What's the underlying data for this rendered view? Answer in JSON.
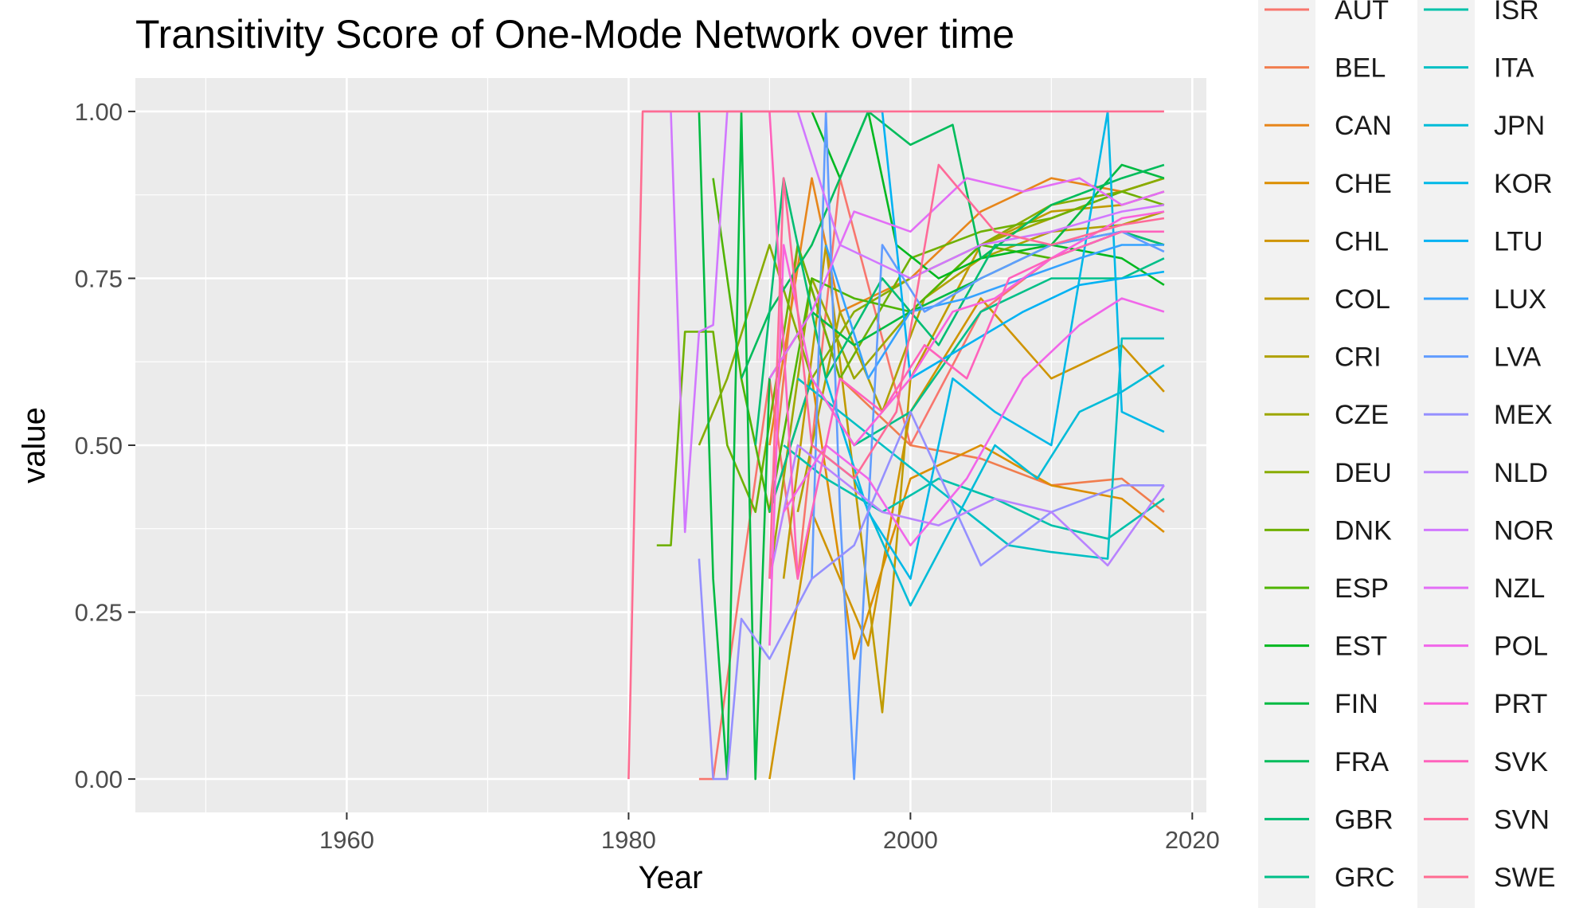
{
  "chart_data": {
    "type": "line",
    "title": "Transitivity Score of One-Mode Network over time",
    "xlabel": "Year",
    "ylabel": "value",
    "xlim": [
      1945,
      2021
    ],
    "ylim": [
      -0.05,
      1.05
    ],
    "x_ticks": [
      1960,
      1980,
      2000,
      2020
    ],
    "x_tick_labels": [
      "1960",
      "1980",
      "2000",
      "2020"
    ],
    "y_ticks": [
      0,
      0.25,
      0.5,
      0.75,
      1.0
    ],
    "y_tick_labels": [
      "0.00",
      "0.25",
      "0.50",
      "0.75",
      "1.00"
    ],
    "grid": true,
    "legend_position": "right",
    "series": [
      {
        "name": "AUT",
        "color": "#F8766D",
        "x": [
          1985,
          1986,
          1990,
          1992,
          1995,
          2000,
          2005,
          2010,
          2015,
          2018
        ],
        "y": [
          0,
          0,
          0.6,
          0.3,
          0.9,
          0.5,
          0.7,
          0.78,
          0.82,
          0.8
        ]
      },
      {
        "name": "BEL",
        "color": "#F17D4E",
        "x": [
          1990,
          1992,
          1995,
          2000,
          2005,
          2010,
          2015,
          2018
        ],
        "y": [
          0.4,
          0.8,
          0.6,
          0.5,
          0.48,
          0.44,
          0.45,
          0.4
        ]
      },
      {
        "name": "CAN",
        "color": "#E7861B",
        "x": [
          1990,
          1993,
          1995,
          2000,
          2005,
          2010,
          2015,
          2018
        ],
        "y": [
          0.5,
          0.9,
          0.7,
          0.75,
          0.85,
          0.9,
          0.88,
          0.9
        ]
      },
      {
        "name": "CHE",
        "color": "#DC8E00",
        "x": [
          1990,
          1993,
          1996,
          2000,
          2005,
          2010,
          2015,
          2018
        ],
        "y": [
          0.4,
          0.6,
          0.18,
          0.45,
          0.5,
          0.44,
          0.42,
          0.37
        ]
      },
      {
        "name": "CHL",
        "color": "#CF9400",
        "x": [
          1990,
          1993,
          1997,
          2000,
          2005,
          2010,
          2015,
          2018
        ],
        "y": [
          0,
          0.4,
          0.2,
          0.55,
          0.72,
          0.6,
          0.65,
          0.58
        ]
      },
      {
        "name": "COL",
        "color": "#C09B00",
        "x": [
          1991,
          1994,
          1998,
          2000,
          2005,
          2010,
          2015,
          2018
        ],
        "y": [
          0.3,
          0.8,
          0.1,
          0.6,
          0.8,
          0.85,
          0.86,
          0.88
        ]
      },
      {
        "name": "CRI",
        "color": "#B0A100",
        "x": [
          1992,
          1995,
          1998,
          2001,
          2005,
          2010,
          2015,
          2018
        ],
        "y": [
          0.4,
          0.7,
          0.55,
          0.72,
          0.78,
          0.82,
          0.83,
          0.85
        ]
      },
      {
        "name": "CZE",
        "color": "#9DA700",
        "x": [
          1990,
          1993,
          1996,
          2000,
          2005,
          2010,
          2015,
          2018
        ],
        "y": [
          0.3,
          0.75,
          0.6,
          0.7,
          0.8,
          0.84,
          0.88,
          0.9
        ]
      },
      {
        "name": "DEU",
        "color": "#88AC00",
        "x": [
          1985,
          1987,
          1990,
          1993,
          1996,
          2000,
          2005,
          2010,
          2015,
          2018
        ],
        "y": [
          0.5,
          0.6,
          0.8,
          0.6,
          0.7,
          0.75,
          0.8,
          0.86,
          0.88,
          0.9
        ]
      },
      {
        "name": "DNK",
        "color": "#6FB000",
        "x": [
          1982,
          1983,
          1984,
          1986,
          1987,
          1989,
          1992,
          1995,
          2000,
          2005,
          2010,
          2015,
          2018
        ],
        "y": [
          0.35,
          0.35,
          0.67,
          0.67,
          0.5,
          0.4,
          0.8,
          0.6,
          0.78,
          0.82,
          0.84,
          0.88,
          0.86
        ]
      },
      {
        "name": "ESP",
        "color": "#4FB400",
        "x": [
          1986,
          1988,
          1990,
          1993,
          1996,
          2000,
          2005,
          2010,
          2015,
          2018
        ],
        "y": [
          0.9,
          0.6,
          0.4,
          0.75,
          0.72,
          0.7,
          0.8,
          0.78,
          0.82,
          0.8
        ]
      },
      {
        "name": "EST",
        "color": "#00B81F",
        "x": [
          1993,
          1995,
          1997,
          1999,
          2002,
          2005,
          2010,
          2015,
          2018
        ],
        "y": [
          1.0,
          0.9,
          1.0,
          0.8,
          0.75,
          0.78,
          0.8,
          0.78,
          0.74
        ]
      },
      {
        "name": "FIN",
        "color": "#00BA42",
        "x": [
          1985,
          1986,
          1987,
          1988,
          1989,
          1990,
          1993,
          1996,
          2000,
          2005,
          2010,
          2015,
          2018
        ],
        "y": [
          1.0,
          0.3,
          0,
          1.0,
          0,
          0.6,
          0.7,
          0.65,
          0.7,
          0.75,
          0.8,
          0.92,
          0.9
        ]
      },
      {
        "name": "FRA",
        "color": "#00BC5B",
        "x": [
          1988,
          1990,
          1993,
          1997,
          2000,
          2003,
          2005,
          2010,
          2015,
          2018
        ],
        "y": [
          0.6,
          0.7,
          0.8,
          1.0,
          0.95,
          0.98,
          0.78,
          0.86,
          0.9,
          0.92
        ]
      },
      {
        "name": "GBR",
        "color": "#00BD73",
        "x": [
          1989,
          1991,
          1994,
          1998,
          2002,
          2006,
          2010,
          2015,
          2018
        ],
        "y": [
          0.5,
          0.9,
          0.6,
          0.75,
          0.65,
          0.8,
          0.8,
          0.82,
          0.8
        ]
      },
      {
        "name": "GRC",
        "color": "#00BF88",
        "x": [
          1990,
          1993,
          1996,
          2000,
          2005,
          2010,
          2015,
          2018
        ],
        "y": [
          0.4,
          0.6,
          0.5,
          0.55,
          0.7,
          0.75,
          0.75,
          0.78
        ]
      },
      {
        "name": "ISR",
        "color": "#00C1AA",
        "x": [
          1991,
          1994,
          1998,
          2002,
          2006,
          2010,
          2014,
          2018
        ],
        "y": [
          0.5,
          0.45,
          0.4,
          0.45,
          0.42,
          0.38,
          0.36,
          0.42
        ]
      },
      {
        "name": "ITA",
        "color": "#00BFC4",
        "x": [
          1992,
          1995,
          1998,
          2001,
          2004,
          2007,
          2010,
          2014,
          2015,
          2018
        ],
        "y": [
          0.6,
          0.55,
          0.5,
          0.45,
          0.4,
          0.35,
          0.34,
          0.33,
          0.66,
          0.66
        ]
      },
      {
        "name": "JPN",
        "color": "#00BCD8",
        "x": [
          1993,
          1996,
          2000,
          2003,
          2006,
          2009,
          2012,
          2015,
          2018
        ],
        "y": [
          0.5,
          0.45,
          0.26,
          0.38,
          0.5,
          0.45,
          0.55,
          0.58,
          0.62
        ]
      },
      {
        "name": "KOR",
        "color": "#00B8E7",
        "x": [
          1994,
          1997,
          2000,
          2003,
          2006,
          2010,
          2014,
          2015,
          2018
        ],
        "y": [
          0.6,
          0.4,
          0.3,
          0.6,
          0.55,
          0.5,
          1.0,
          0.55,
          0.52
        ]
      },
      {
        "name": "LTU",
        "color": "#00B2F3",
        "x": [
          1994,
          1996,
          1998,
          2000,
          2004,
          2008,
          2012,
          2015,
          2018
        ],
        "y": [
          1.0,
          1.0,
          1.0,
          0.6,
          0.65,
          0.7,
          0.74,
          0.75,
          0.76
        ]
      },
      {
        "name": "LUX",
        "color": "#35A2FF",
        "x": [
          1994,
          1997,
          2000,
          2004,
          2008,
          2012,
          2015,
          2018
        ],
        "y": [
          0.8,
          0.6,
          0.7,
          0.72,
          0.75,
          0.78,
          0.8,
          0.8
        ]
      },
      {
        "name": "LVA",
        "color": "#619CFF",
        "x": [
          1993,
          1994,
          1995,
          1996,
          1998,
          2001,
          2005,
          2010,
          2015,
          2018
        ],
        "y": [
          0.3,
          1.0,
          0.4,
          0,
          0.8,
          0.7,
          0.75,
          0.8,
          0.82,
          0.79
        ]
      },
      {
        "name": "MEX",
        "color": "#9590FF",
        "x": [
          1985,
          1986,
          1987,
          1988,
          1990,
          1993,
          1996,
          2000,
          2005,
          2010,
          2015,
          2018
        ],
        "y": [
          0.33,
          0,
          0,
          0.24,
          0.18,
          0.3,
          0.35,
          0.55,
          0.32,
          0.4,
          0.44,
          0.44
        ]
      },
      {
        "name": "NLD",
        "color": "#B983FF",
        "x": [
          1990,
          1992,
          1995,
          1998,
          2002,
          2006,
          2010,
          2014,
          2018
        ],
        "y": [
          0.3,
          0.5,
          0.45,
          0.4,
          0.38,
          0.42,
          0.4,
          0.32,
          0.44
        ]
      },
      {
        "name": "NOR",
        "color": "#D177FF",
        "x": [
          1981,
          1982,
          1983,
          1984,
          1985,
          1986,
          1987,
          1988,
          1989,
          1990,
          1991,
          1992,
          1995,
          2000,
          2005,
          2010,
          2015,
          2018
        ],
        "y": [
          1.0,
          1.0,
          1.0,
          0.37,
          0.67,
          0.68,
          1.0,
          1.0,
          1.0,
          1.0,
          1.0,
          1.0,
          0.8,
          0.75,
          0.8,
          0.82,
          0.85,
          0.86
        ]
      },
      {
        "name": "NZL",
        "color": "#E36EF6",
        "x": [
          1990,
          1993,
          1996,
          2000,
          2004,
          2008,
          2012,
          2015,
          2018
        ],
        "y": [
          0.6,
          0.7,
          0.85,
          0.82,
          0.9,
          0.88,
          0.9,
          0.86,
          0.88
        ]
      },
      {
        "name": "POL",
        "color": "#F166E9",
        "x": [
          1991,
          1994,
          1997,
          2000,
          2004,
          2008,
          2012,
          2015,
          2018
        ],
        "y": [
          0.4,
          0.5,
          0.45,
          0.35,
          0.45,
          0.6,
          0.68,
          0.72,
          0.7
        ]
      },
      {
        "name": "PRT",
        "color": "#FA62DB",
        "x": [
          1990,
          1991,
          1993,
          1996,
          2000,
          2003,
          2006,
          2010,
          2015,
          2018
        ],
        "y": [
          0.2,
          0.8,
          0.6,
          0.5,
          0.6,
          0.7,
          0.72,
          0.78,
          0.84,
          0.85
        ]
      },
      {
        "name": "SVK",
        "color": "#FF62BC",
        "x": [
          1990,
          1992,
          1995,
          1998,
          2001,
          2004,
          2007,
          2010,
          2015,
          2018
        ],
        "y": [
          1.0,
          0.3,
          0.6,
          0.55,
          0.65,
          0.6,
          0.75,
          0.78,
          0.82,
          0.82
        ]
      },
      {
        "name": "SVN",
        "color": "#FF6A98",
        "x": [
          1990,
          1991,
          1993,
          1996,
          1999,
          2002,
          2006,
          2010,
          2015,
          2018
        ],
        "y": [
          0.3,
          0.9,
          0.5,
          0.45,
          0.55,
          0.92,
          0.82,
          0.8,
          0.83,
          0.84
        ]
      },
      {
        "name": "SWE",
        "color": "#FF6C91",
        "x": [
          1980,
          1981,
          1995,
          2003,
          2010,
          2018
        ],
        "y": [
          0,
          1.0,
          1.0,
          1.0,
          1.0,
          1.0
        ]
      }
    ]
  }
}
